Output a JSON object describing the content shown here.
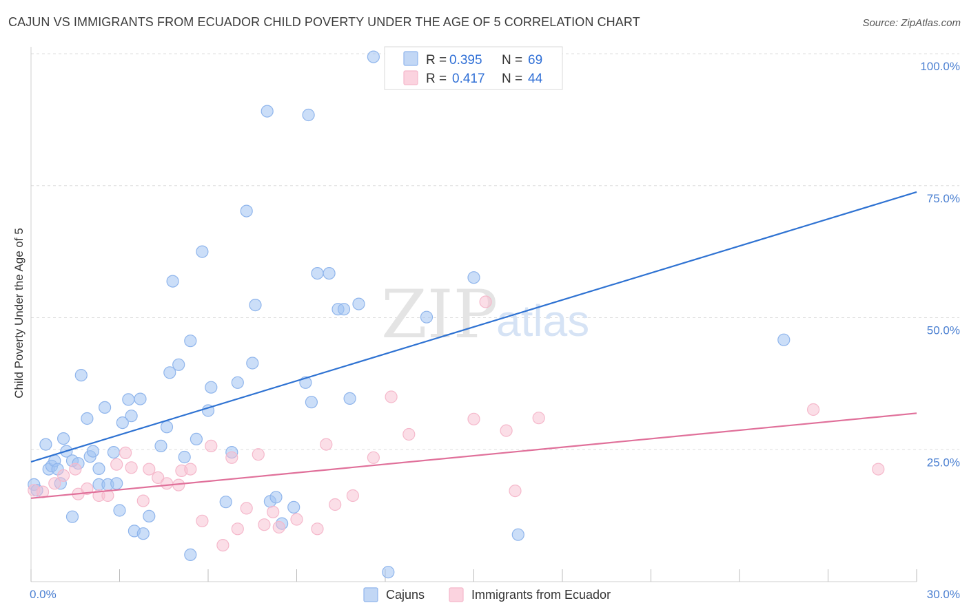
{
  "title": "CAJUN VS IMMIGRANTS FROM ECUADOR CHILD POVERTY UNDER THE AGE OF 5 CORRELATION CHART",
  "source": "Source: ZipAtlas.com",
  "watermark": {
    "zip": "ZIP",
    "atlas": "atlas"
  },
  "chart_data": {
    "type": "scatter",
    "title": "CAJUN VS IMMIGRANTS FROM ECUADOR CHILD POVERTY UNDER THE AGE OF 5 CORRELATION CHART",
    "xlabel": "",
    "ylabel": "Child Poverty Under the Age of 5",
    "xlim": [
      0,
      30
    ],
    "ylim": [
      0,
      100
    ],
    "x_tick_labels": [
      "0.0%",
      "30.0%"
    ],
    "y_ticks": [
      25,
      50,
      75,
      100
    ],
    "y_tick_labels": [
      "25.0%",
      "50.0%",
      "75.0%",
      "100.0%"
    ],
    "grid": true,
    "legend_position": "top-center",
    "series": [
      {
        "name": "Cajuns",
        "color": "#8fb5ec",
        "line_color": "#2e72d2",
        "r_label": "R =",
        "r_value": "0.395",
        "n_label": "N =",
        "n_value": "69",
        "trend": {
          "x": [
            0,
            30
          ],
          "y": [
            22.7,
            73.8
          ]
        },
        "points": [
          [
            0.1,
            18.4
          ],
          [
            0.2,
            17.3
          ],
          [
            0.5,
            26.0
          ],
          [
            0.6,
            21.3
          ],
          [
            0.7,
            21.9
          ],
          [
            0.8,
            22.9
          ],
          [
            0.9,
            21.3
          ],
          [
            1.0,
            18.6
          ],
          [
            1.1,
            27.1
          ],
          [
            1.2,
            24.7
          ],
          [
            1.4,
            12.3
          ],
          [
            1.4,
            22.9
          ],
          [
            1.6,
            22.4
          ],
          [
            1.7,
            39.1
          ],
          [
            1.9,
            30.9
          ],
          [
            2.0,
            23.7
          ],
          [
            2.1,
            24.7
          ],
          [
            2.3,
            18.4
          ],
          [
            2.3,
            21.4
          ],
          [
            2.5,
            33.0
          ],
          [
            2.6,
            18.4
          ],
          [
            2.8,
            24.5
          ],
          [
            2.9,
            18.6
          ],
          [
            3.0,
            13.5
          ],
          [
            3.1,
            30.1
          ],
          [
            3.3,
            34.5
          ],
          [
            3.4,
            31.4
          ],
          [
            3.5,
            9.6
          ],
          [
            3.7,
            34.6
          ],
          [
            3.8,
            9.1
          ],
          [
            4.0,
            12.4
          ],
          [
            4.4,
            25.7
          ],
          [
            4.6,
            29.3
          ],
          [
            4.7,
            39.6
          ],
          [
            4.8,
            56.9
          ],
          [
            5.0,
            41.1
          ],
          [
            5.2,
            23.6
          ],
          [
            5.4,
            45.6
          ],
          [
            5.4,
            5.1
          ],
          [
            5.6,
            27.0
          ],
          [
            5.8,
            62.5
          ],
          [
            6.0,
            32.4
          ],
          [
            6.1,
            36.8
          ],
          [
            6.6,
            15.1
          ],
          [
            6.8,
            24.5
          ],
          [
            7.0,
            37.7
          ],
          [
            7.3,
            70.2
          ],
          [
            7.5,
            41.4
          ],
          [
            7.6,
            52.4
          ],
          [
            8.0,
            89.1
          ],
          [
            8.1,
            15.2
          ],
          [
            8.3,
            16.0
          ],
          [
            8.5,
            11.0
          ],
          [
            8.9,
            14.1
          ],
          [
            9.3,
            37.7
          ],
          [
            9.4,
            88.4
          ],
          [
            9.5,
            34.0
          ],
          [
            9.7,
            58.4
          ],
          [
            10.1,
            58.4
          ],
          [
            10.4,
            51.6
          ],
          [
            10.6,
            51.6
          ],
          [
            10.8,
            34.7
          ],
          [
            11.1,
            52.6
          ],
          [
            11.6,
            99.4
          ],
          [
            12.1,
            1.8
          ],
          [
            13.4,
            50.1
          ],
          [
            15.0,
            57.6
          ],
          [
            16.5,
            8.9
          ],
          [
            25.5,
            45.8
          ]
        ]
      },
      {
        "name": "Immigrants from Ecuador",
        "color": "#f5b8cb",
        "line_color": "#e0709a",
        "r_label": "R =",
        "r_value": "0.417",
        "n_label": "N =",
        "n_value": "44",
        "trend": {
          "x": [
            0,
            30
          ],
          "y": [
            15.8,
            31.9
          ]
        },
        "points": [
          [
            0.1,
            17.3
          ],
          [
            0.4,
            17.0
          ],
          [
            0.8,
            18.6
          ],
          [
            1.1,
            20.1
          ],
          [
            1.5,
            21.3
          ],
          [
            1.6,
            16.6
          ],
          [
            1.9,
            17.6
          ],
          [
            2.3,
            16.3
          ],
          [
            2.6,
            16.3
          ],
          [
            2.9,
            22.2
          ],
          [
            3.2,
            24.4
          ],
          [
            3.4,
            21.6
          ],
          [
            3.8,
            15.3
          ],
          [
            4.0,
            21.3
          ],
          [
            4.3,
            19.7
          ],
          [
            4.6,
            18.6
          ],
          [
            5.0,
            18.3
          ],
          [
            5.1,
            21.0
          ],
          [
            5.4,
            21.3
          ],
          [
            5.8,
            11.5
          ],
          [
            6.1,
            25.7
          ],
          [
            6.5,
            6.9
          ],
          [
            6.8,
            23.5
          ],
          [
            7.0,
            10.0
          ],
          [
            7.3,
            13.9
          ],
          [
            7.7,
            24.1
          ],
          [
            7.9,
            10.8
          ],
          [
            8.2,
            13.2
          ],
          [
            8.4,
            10.3
          ],
          [
            9.0,
            11.8
          ],
          [
            9.7,
            10.0
          ],
          [
            10.0,
            26.0
          ],
          [
            10.3,
            14.6
          ],
          [
            10.9,
            16.3
          ],
          [
            11.6,
            23.5
          ],
          [
            12.2,
            35.0
          ],
          [
            12.8,
            27.9
          ],
          [
            15.0,
            30.8
          ],
          [
            15.4,
            53.0
          ],
          [
            16.1,
            28.6
          ],
          [
            16.4,
            17.2
          ],
          [
            17.2,
            31.0
          ],
          [
            26.5,
            32.6
          ],
          [
            28.7,
            21.3
          ]
        ]
      }
    ]
  }
}
